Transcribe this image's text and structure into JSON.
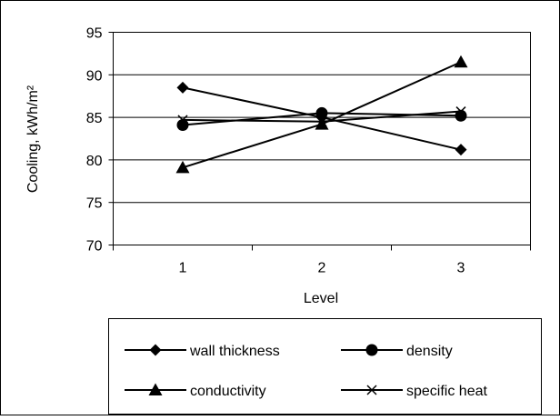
{
  "chart_data": {
    "type": "line",
    "title": "",
    "xlabel": "Level",
    "ylabel": "Cooling, kWh/m²",
    "x": [
      1,
      2,
      3
    ],
    "categories": [
      "1",
      "2",
      "3"
    ],
    "ylim": [
      70,
      95
    ],
    "yticks": [
      70,
      75,
      80,
      85,
      90,
      95
    ],
    "grid": true,
    "legend_position": "bottom",
    "series": [
      {
        "name": "wall thickness",
        "marker": "diamond",
        "values": [
          88.5,
          85.0,
          81.2
        ]
      },
      {
        "name": "density",
        "marker": "circle",
        "values": [
          84.1,
          85.5,
          85.2
        ]
      },
      {
        "name": "conductivity",
        "marker": "triangle",
        "values": [
          79.1,
          84.2,
          91.5
        ]
      },
      {
        "name": "specific heat",
        "marker": "x",
        "values": [
          84.7,
          84.5,
          85.7
        ]
      }
    ]
  }
}
